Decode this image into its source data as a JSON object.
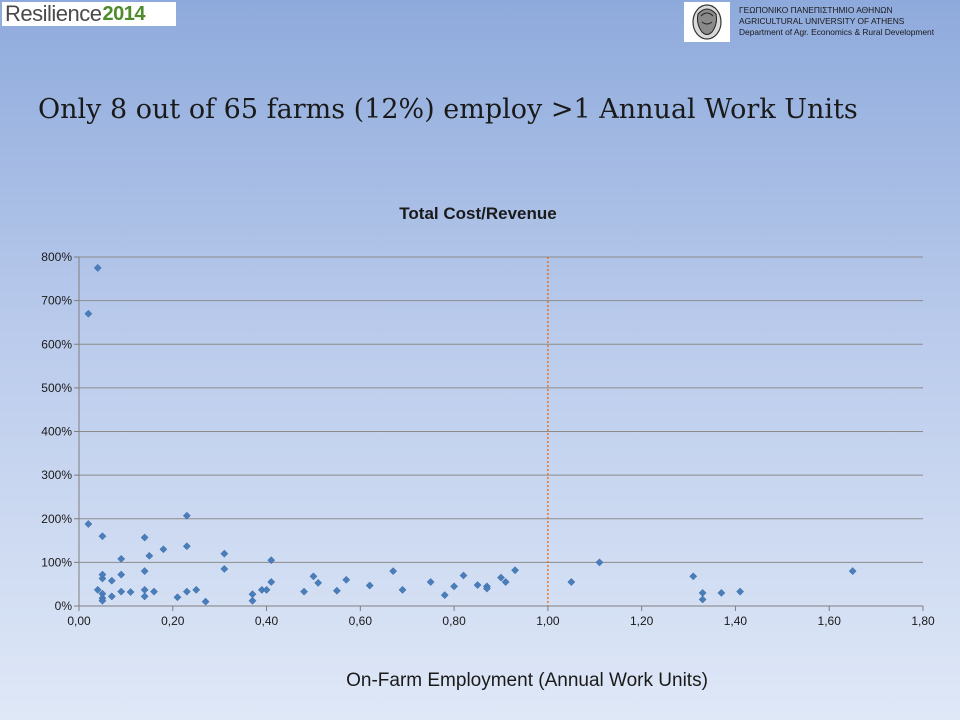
{
  "header": {
    "logo_text_1": "Resilience",
    "logo_text_2": "2014",
    "university_lines": [
      "ΓΕΩΠΟΝΙΚΟ ΠΑΝΕΠΙΣΤΗΜΙΟ ΑΘΗΝΩΝ",
      "AGRICULTURAL UNIVERSITY OF ATHENS",
      "Department of Agr. Economics & Rural Development"
    ]
  },
  "slide_title": "Only 8 out of 65 farms (12%) employ >1 Annual Work Units",
  "chart_data": {
    "type": "scatter",
    "title": "Total Cost/Revenue",
    "xlabel": "On-Farm Employment (Annual Work Units)",
    "ylabel": "",
    "xlim": [
      0,
      1.8
    ],
    "ylim": [
      0,
      800
    ],
    "x_ticks": [
      "0,00",
      "0,20",
      "0,40",
      "0,60",
      "0,80",
      "1,00",
      "1,20",
      "1,40",
      "1,60",
      "1,80"
    ],
    "y_ticks": [
      "0%",
      "100%",
      "200%",
      "300%",
      "400%",
      "500%",
      "600%",
      "700%",
      "800%"
    ],
    "y_unit": "%",
    "grid": "horizontal",
    "legend": "none",
    "marker": "diamond",
    "marker_color": "#4a7ebb",
    "reference_line": {
      "x": 1.0,
      "style": "dotted",
      "color": "#e46c0a"
    },
    "points": [
      [
        0.02,
        670
      ],
      [
        0.04,
        775
      ],
      [
        0.02,
        188
      ],
      [
        0.05,
        160
      ],
      [
        0.04,
        37
      ],
      [
        0.05,
        28
      ],
      [
        0.05,
        18
      ],
      [
        0.05,
        12
      ],
      [
        0.05,
        63
      ],
      [
        0.05,
        72
      ],
      [
        0.07,
        58
      ],
      [
        0.07,
        22
      ],
      [
        0.09,
        33
      ],
      [
        0.09,
        72
      ],
      [
        0.09,
        108
      ],
      [
        0.11,
        32
      ],
      [
        0.14,
        157
      ],
      [
        0.14,
        80
      ],
      [
        0.14,
        37
      ],
      [
        0.14,
        22
      ],
      [
        0.15,
        115
      ],
      [
        0.16,
        33
      ],
      [
        0.18,
        130
      ],
      [
        0.21,
        20
      ],
      [
        0.23,
        207
      ],
      [
        0.23,
        137
      ],
      [
        0.23,
        33
      ],
      [
        0.25,
        37
      ],
      [
        0.27,
        10
      ],
      [
        0.31,
        120
      ],
      [
        0.31,
        85
      ],
      [
        0.37,
        12
      ],
      [
        0.37,
        27
      ],
      [
        0.39,
        37
      ],
      [
        0.4,
        37
      ],
      [
        0.41,
        105
      ],
      [
        0.41,
        55
      ],
      [
        0.48,
        33
      ],
      [
        0.5,
        68
      ],
      [
        0.51,
        53
      ],
      [
        0.55,
        35
      ],
      [
        0.57,
        60
      ],
      [
        0.62,
        47
      ],
      [
        0.67,
        80
      ],
      [
        0.69,
        37
      ],
      [
        0.75,
        55
      ],
      [
        0.78,
        25
      ],
      [
        0.8,
        45
      ],
      [
        0.82,
        70
      ],
      [
        0.85,
        48
      ],
      [
        0.87,
        45
      ],
      [
        0.87,
        40
      ],
      [
        0.9,
        65
      ],
      [
        0.91,
        55
      ],
      [
        0.93,
        82
      ],
      [
        1.05,
        55
      ],
      [
        1.11,
        100
      ],
      [
        1.31,
        68
      ],
      [
        1.33,
        30
      ],
      [
        1.33,
        15
      ],
      [
        1.37,
        30
      ],
      [
        1.41,
        33
      ],
      [
        1.65,
        80
      ]
    ]
  }
}
